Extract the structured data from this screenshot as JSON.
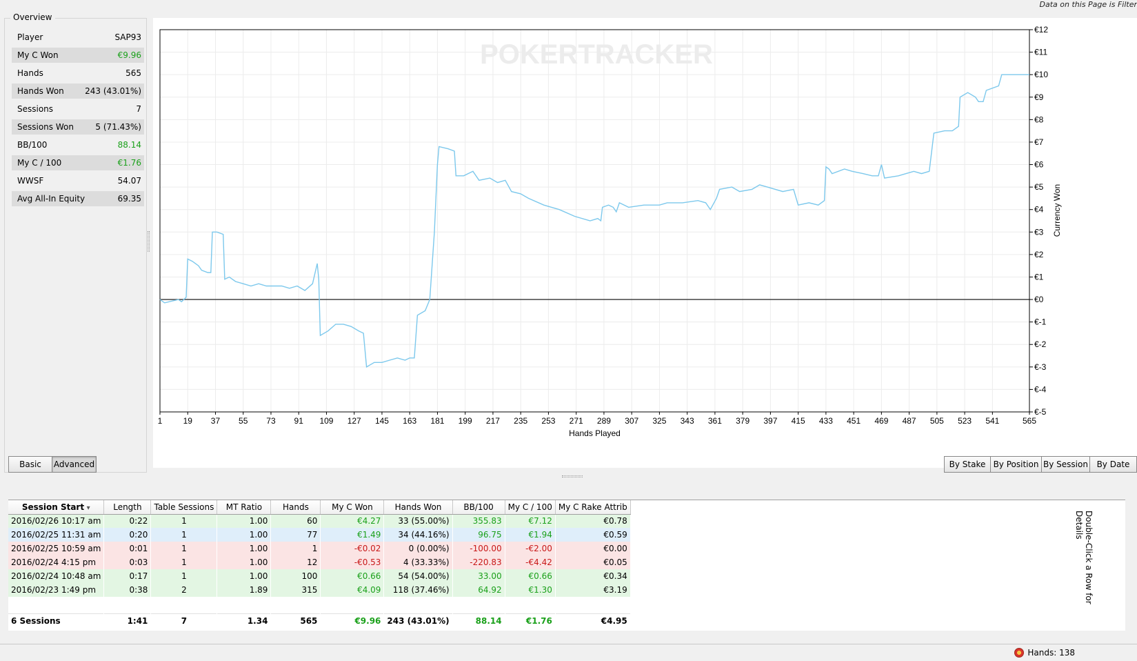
{
  "header": {
    "filter_note": "Data on this Page is Filter"
  },
  "overview": {
    "title": "Overview",
    "rows": [
      {
        "label": "Player",
        "value": "SAP93",
        "color": ""
      },
      {
        "label": "My C Won",
        "value": "€9.96",
        "color": "green"
      },
      {
        "label": "Hands",
        "value": "565",
        "color": ""
      },
      {
        "label": "Hands Won",
        "value": "243 (43.01%)",
        "color": ""
      },
      {
        "label": "Sessions",
        "value": "7",
        "color": ""
      },
      {
        "label": "Sessions Won",
        "value": "5 (71.43%)",
        "color": ""
      },
      {
        "label": "BB/100",
        "value": "88.14",
        "color": "green"
      },
      {
        "label": "My C / 100",
        "value": "€1.76",
        "color": "green"
      },
      {
        "label": "WWSF",
        "value": "54.07",
        "color": ""
      },
      {
        "label": "Avg All-In Equity",
        "value": "69.35",
        "color": ""
      }
    ]
  },
  "chart_data": {
    "type": "line",
    "title": "",
    "watermark": "POKERTRACKER",
    "xlabel": "Hands Played",
    "ylabel": "Currency Won",
    "xlim": [
      1,
      565
    ],
    "ylim": [
      -5,
      12
    ],
    "x_ticks": [
      "1",
      "19",
      "37",
      "55",
      "73",
      "91",
      "109",
      "127",
      "145",
      "163",
      "181",
      "199",
      "217",
      "235",
      "253",
      "271",
      "289",
      "307",
      "325",
      "343",
      "361",
      "379",
      "397",
      "415",
      "433",
      "451",
      "469",
      "487",
      "505",
      "523",
      "541",
      "565"
    ],
    "y_ticks": [
      "€12",
      "€11",
      "€10",
      "€9",
      "€8",
      "€7",
      "€6",
      "€5",
      "€4",
      "€3",
      "€2",
      "€1",
      "€0",
      "€-1",
      "€-2",
      "€-3",
      "€-4",
      "€-5"
    ],
    "grid": true,
    "line_color": "#7cc8ec",
    "series": [
      {
        "points": [
          [
            1,
            0
          ],
          [
            4,
            -0.15
          ],
          [
            10,
            -0.05
          ],
          [
            13,
            0
          ],
          [
            15,
            -0.1
          ],
          [
            18,
            0.1
          ],
          [
            19,
            1.8
          ],
          [
            22,
            1.7
          ],
          [
            26,
            1.5
          ],
          [
            28,
            1.3
          ],
          [
            32,
            1.2
          ],
          [
            34,
            1.2
          ],
          [
            35,
            3.0
          ],
          [
            38,
            3.0
          ],
          [
            42,
            2.9
          ],
          [
            43,
            0.9
          ],
          [
            46,
            1.0
          ],
          [
            50,
            0.8
          ],
          [
            55,
            0.7
          ],
          [
            60,
            0.6
          ],
          [
            65,
            0.7
          ],
          [
            70,
            0.6
          ],
          [
            75,
            0.6
          ],
          [
            80,
            0.6
          ],
          [
            85,
            0.5
          ],
          [
            90,
            0.6
          ],
          [
            95,
            0.4
          ],
          [
            100,
            0.7
          ],
          [
            103,
            1.6
          ],
          [
            104,
            0.9
          ],
          [
            105,
            -1.6
          ],
          [
            110,
            -1.4
          ],
          [
            115,
            -1.1
          ],
          [
            120,
            -1.1
          ],
          [
            125,
            -1.2
          ],
          [
            130,
            -1.4
          ],
          [
            133,
            -1.5
          ],
          [
            135,
            -3.0
          ],
          [
            140,
            -2.8
          ],
          [
            145,
            -2.8
          ],
          [
            150,
            -2.7
          ],
          [
            155,
            -2.6
          ],
          [
            160,
            -2.7
          ],
          [
            163,
            -2.6
          ],
          [
            166,
            -2.6
          ],
          [
            168,
            -0.7
          ],
          [
            173,
            -0.5
          ],
          [
            176,
            0
          ],
          [
            179,
            3.0
          ],
          [
            181,
            6.0
          ],
          [
            182,
            6.8
          ],
          [
            188,
            6.7
          ],
          [
            192,
            6.6
          ],
          [
            193,
            5.5
          ],
          [
            198,
            5.5
          ],
          [
            204,
            5.7
          ],
          [
            208,
            5.3
          ],
          [
            215,
            5.4
          ],
          [
            220,
            5.2
          ],
          [
            225,
            5.3
          ],
          [
            229,
            4.8
          ],
          [
            235,
            4.7
          ],
          [
            240,
            4.5
          ],
          [
            250,
            4.2
          ],
          [
            260,
            4.0
          ],
          [
            270,
            3.7
          ],
          [
            280,
            3.5
          ],
          [
            285,
            3.6
          ],
          [
            287,
            3.5
          ],
          [
            288,
            4.1
          ],
          [
            292,
            4.2
          ],
          [
            295,
            4.1
          ],
          [
            297,
            3.9
          ],
          [
            299,
            4.3
          ],
          [
            305,
            4.1
          ],
          [
            315,
            4.2
          ],
          [
            325,
            4.2
          ],
          [
            330,
            4.3
          ],
          [
            340,
            4.3
          ],
          [
            350,
            4.4
          ],
          [
            355,
            4.3
          ],
          [
            358,
            4.0
          ],
          [
            362,
            4.5
          ],
          [
            364,
            4.9
          ],
          [
            372,
            5.0
          ],
          [
            377,
            4.8
          ],
          [
            385,
            4.9
          ],
          [
            390,
            5.1
          ],
          [
            395,
            5.0
          ],
          [
            405,
            4.8
          ],
          [
            412,
            4.9
          ],
          [
            415,
            4.2
          ],
          [
            422,
            4.3
          ],
          [
            428,
            4.2
          ],
          [
            432,
            4.4
          ],
          [
            433,
            5.9
          ],
          [
            435,
            5.8
          ],
          [
            437,
            5.6
          ],
          [
            445,
            5.8
          ],
          [
            450,
            5.7
          ],
          [
            457,
            5.6
          ],
          [
            463,
            5.5
          ],
          [
            467,
            5.5
          ],
          [
            469,
            6.0
          ],
          [
            471,
            5.4
          ],
          [
            480,
            5.5
          ],
          [
            485,
            5.6
          ],
          [
            490,
            5.7
          ],
          [
            495,
            5.6
          ],
          [
            500,
            5.7
          ],
          [
            503,
            7.4
          ],
          [
            510,
            7.5
          ],
          [
            515,
            7.5
          ],
          [
            519,
            7.7
          ],
          [
            520,
            9.0
          ],
          [
            525,
            9.2
          ],
          [
            530,
            9.0
          ],
          [
            532,
            8.8
          ],
          [
            535,
            8.8
          ],
          [
            537,
            9.3
          ],
          [
            545,
            9.5
          ],
          [
            547,
            10.0
          ],
          [
            555,
            10.0
          ],
          [
            565,
            10.0
          ]
        ]
      }
    ]
  },
  "view_tabs": [
    {
      "label": "Basic",
      "active": false
    },
    {
      "label": "Advanced",
      "active": true
    }
  ],
  "group_tabs": [
    {
      "label": "By Stake"
    },
    {
      "label": "By Position"
    },
    {
      "label": "By Session"
    },
    {
      "label": "By Date"
    }
  ],
  "table": {
    "columns": [
      "Session Start",
      "Length",
      "Table Sessions",
      "MT Ratio",
      "Hands",
      "My C Won",
      "Hands Won",
      "BB/100",
      "My C / 100",
      "My C Rake Attrib"
    ],
    "rows": [
      {
        "status": "green",
        "cells": [
          "2016/02/26 10:17 am",
          "0:22",
          "1",
          "1.00",
          "60",
          "€4.27",
          "33 (55.00%)",
          "355.83",
          "€7.12",
          "€0.78"
        ]
      },
      {
        "status": "blue",
        "cells": [
          "2016/02/25 11:31 am",
          "0:20",
          "1",
          "1.00",
          "77",
          "€1.49",
          "34 (44.16%)",
          "96.75",
          "€1.94",
          "€0.59"
        ]
      },
      {
        "status": "red",
        "cells": [
          "2016/02/25 10:59 am",
          "0:01",
          "1",
          "1.00",
          "1",
          "-€0.02",
          "0 (0.00%)",
          "-100.00",
          "-€2.00",
          "€0.00"
        ]
      },
      {
        "status": "red",
        "cells": [
          "2016/02/24  4:15 pm",
          "0:03",
          "1",
          "1.00",
          "12",
          "-€0.53",
          "4 (33.33%)",
          "-220.83",
          "-€4.42",
          "€0.05"
        ]
      },
      {
        "status": "green",
        "cells": [
          "2016/02/24 10:48 am",
          "0:17",
          "1",
          "1.00",
          "100",
          "€0.66",
          "54 (54.00%)",
          "33.00",
          "€0.66",
          "€0.34"
        ]
      },
      {
        "status": "green",
        "cells": [
          "2016/02/23  1:49 pm",
          "0:38",
          "2",
          "1.89",
          "315",
          "€4.09",
          "118 (37.46%)",
          "64.92",
          "€1.30",
          "€3.19"
        ]
      }
    ],
    "total": [
      "6 Sessions",
      "1:41",
      "7",
      "1.34",
      "565",
      "€9.96",
      "243 (43.01%)",
      "88.14",
      "€1.76",
      "€4.95"
    ],
    "side_hint": "Double-Click a Row for Details"
  },
  "status_bar": {
    "hands_label": "Hands: 138"
  }
}
